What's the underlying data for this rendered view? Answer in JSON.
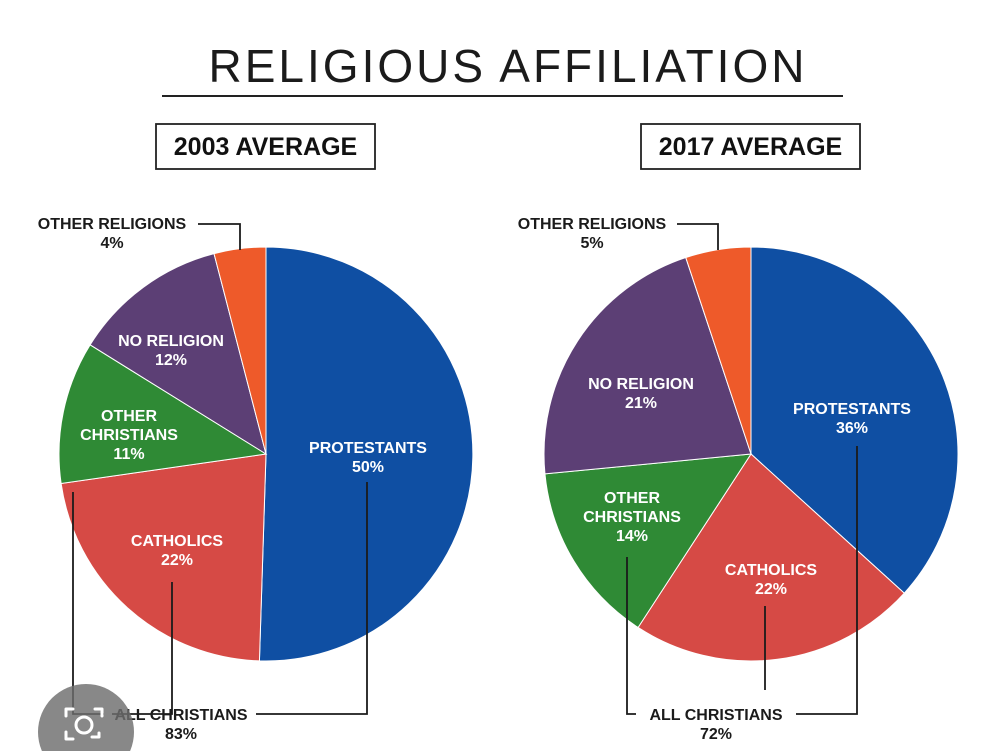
{
  "title": "RELIGIOUS AFFILIATION",
  "colors": {
    "PROTESTANTS": "#0f4fa3",
    "CATHOLICS": "#d64a45",
    "OTHER CHRISTIANS": "#2f8a35",
    "NO RELIGION": "#5c3f75",
    "OTHER RELIGIONS": "#ee5a2a"
  },
  "icons": {
    "camera_badge": "camera-icon"
  },
  "chart_data": [
    {
      "type": "pie",
      "title": "2003 AVERAGE",
      "slices": [
        {
          "label": "PROTESTANTS",
          "value": 50,
          "display": "50%"
        },
        {
          "label": "CATHOLICS",
          "value": 22,
          "display": "22%"
        },
        {
          "label": "OTHER CHRISTIANS",
          "value": 11,
          "display": "11%"
        },
        {
          "label": "NO RELIGION",
          "value": 12,
          "display": "12%"
        },
        {
          "label": "OTHER RELIGIONS",
          "value": 4,
          "display": "4%"
        }
      ],
      "group_label": "ALL CHRISTIANS",
      "group_value": "83%"
    },
    {
      "type": "pie",
      "title": "2017 AVERAGE",
      "slices": [
        {
          "label": "PROTESTANTS",
          "value": 36,
          "display": "36%"
        },
        {
          "label": "CATHOLICS",
          "value": 22,
          "display": "22%"
        },
        {
          "label": "OTHER CHRISTIANS",
          "value": 14,
          "display": "14%"
        },
        {
          "label": "NO RELIGION",
          "value": 21,
          "display": "21%"
        },
        {
          "label": "OTHER RELIGIONS",
          "value": 5,
          "display": "5%"
        }
      ],
      "group_label": "ALL CHRISTIANS",
      "group_value": "72%"
    }
  ]
}
